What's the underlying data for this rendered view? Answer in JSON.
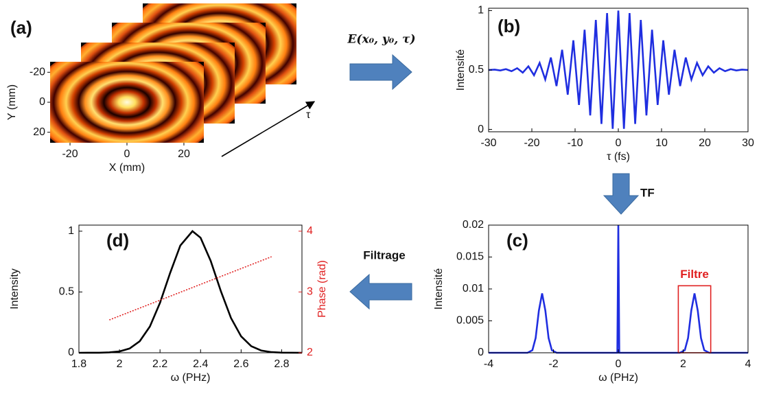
{
  "chart_data": [
    {
      "type": "image",
      "label": "(a)",
      "xlabel": "X (mm)",
      "ylabel": "Y (mm)",
      "xlim": [
        -27,
        27
      ],
      "ylim": [
        -27,
        27
      ],
      "y_inverted": true,
      "xticks": [
        -20,
        0,
        20
      ],
      "yticks": [
        -20,
        0,
        20
      ],
      "stack_label": "τ"
    },
    {
      "type": "line",
      "label": "(b)",
      "xlabel": "τ (fs)",
      "ylabel": "Intensité",
      "xlim": [
        -30,
        30
      ],
      "xticks": [
        -30,
        -20,
        -10,
        0,
        10,
        20,
        30
      ],
      "ylim": [
        -0.02,
        1.02
      ],
      "yticks": [
        0,
        0.5,
        1
      ],
      "series": [
        {
          "color": "#1f2ee0",
          "x": [
            -30,
            -28.6,
            -27.3,
            -26,
            -24.7,
            -23.4,
            -22.1,
            -20.8,
            -19.5,
            -18.2,
            -16.9,
            -15.6,
            -14.3,
            -13,
            -11.7,
            -10.4,
            -9.1,
            -7.8,
            -6.5,
            -5.2,
            -3.9,
            -2.6,
            -1.3,
            0,
            1.3,
            2.6,
            3.9,
            5.2,
            6.5,
            7.8,
            9.1,
            10.4,
            11.7,
            13,
            14.3,
            15.6,
            16.9,
            18.2,
            19.5,
            20.8,
            22.1,
            23.4,
            24.7,
            26,
            27.3,
            28.6,
            30
          ],
          "values": [
            0.5,
            0.503,
            0.496,
            0.507,
            0.49,
            0.515,
            0.478,
            0.531,
            0.456,
            0.56,
            0.42,
            0.605,
            0.365,
            0.67,
            0.292,
            0.75,
            0.206,
            0.839,
            0.118,
            0.921,
            0.046,
            0.979,
            0.005,
            1.0,
            0.005,
            0.979,
            0.046,
            0.921,
            0.118,
            0.839,
            0.206,
            0.75,
            0.292,
            0.67,
            0.365,
            0.605,
            0.42,
            0.56,
            0.456,
            0.531,
            0.478,
            0.515,
            0.49,
            0.507,
            0.496,
            0.503,
            0.5
          ]
        }
      ]
    },
    {
      "type": "line",
      "label": "(c)",
      "xlabel": "ω (PHz)",
      "ylabel": "Intensité",
      "xlim": [
        -4,
        4
      ],
      "xticks": [
        -4,
        -2,
        0,
        2,
        4
      ],
      "ylim": [
        0,
        0.02
      ],
      "yticks": [
        0,
        0.005,
        0.01,
        0.015,
        0.02
      ],
      "series": [
        {
          "color": "#1f2ee0",
          "x": [
            -4,
            -2.8,
            -2.65,
            -2.55,
            -2.45,
            -2.35,
            -2.25,
            -2.15,
            -2.05,
            -1.9,
            -0.03,
            0,
            0.03,
            1.9,
            2.05,
            2.15,
            2.25,
            2.35,
            2.45,
            2.55,
            2.65,
            2.8,
            4
          ],
          "values": [
            0,
            0,
            0.0004,
            0.0023,
            0.0066,
            0.0093,
            0.0066,
            0.0023,
            0.0004,
            0,
            0,
            0.02,
            0,
            0,
            0.0004,
            0.0023,
            0.0066,
            0.0093,
            0.0066,
            0.0023,
            0.0004,
            0,
            0
          ]
        }
      ],
      "filter": {
        "label": "Filtre",
        "x": [
          1.85,
          2.85
        ],
        "y": [
          0,
          0.0105
        ],
        "color": "#e02020"
      }
    },
    {
      "type": "line",
      "label": "(d)",
      "xlabel": "ω (PHz)",
      "ylabel": "Intensity",
      "y2label": "Phase (rad)",
      "y2color": "#e02020",
      "xlim": [
        1.8,
        2.9
      ],
      "xticks": [
        1.8,
        2,
        2.2,
        2.4,
        2.6,
        2.8
      ],
      "ylim": [
        0,
        1.05
      ],
      "yticks": [
        0,
        0.5,
        1
      ],
      "y2lim": [
        2,
        4.1
      ],
      "y2ticks": [
        2,
        3,
        4
      ],
      "series": [
        {
          "color": "#000000",
          "x": [
            1.8,
            1.9,
            1.95,
            2.0,
            2.05,
            2.1,
            2.15,
            2.2,
            2.25,
            2.3,
            2.36,
            2.4,
            2.45,
            2.5,
            2.55,
            2.6,
            2.65,
            2.7,
            2.75,
            2.8,
            2.9
          ],
          "values": [
            0,
            0.0006,
            0.003,
            0.011,
            0.035,
            0.095,
            0.216,
            0.411,
            0.657,
            0.882,
            1,
            0.946,
            0.755,
            0.507,
            0.286,
            0.135,
            0.054,
            0.018,
            0.005,
            0.001,
            0
          ]
        },
        {
          "color": "#e02020",
          "axis": "y2",
          "dashed": true,
          "x": [
            1.95,
            2.75
          ],
          "values": [
            2.54,
            3.58
          ]
        }
      ]
    }
  ],
  "annotations": {
    "field": "E(x₀, y₀, τ)",
    "transform": "TF",
    "filtering": "Filtrage"
  }
}
